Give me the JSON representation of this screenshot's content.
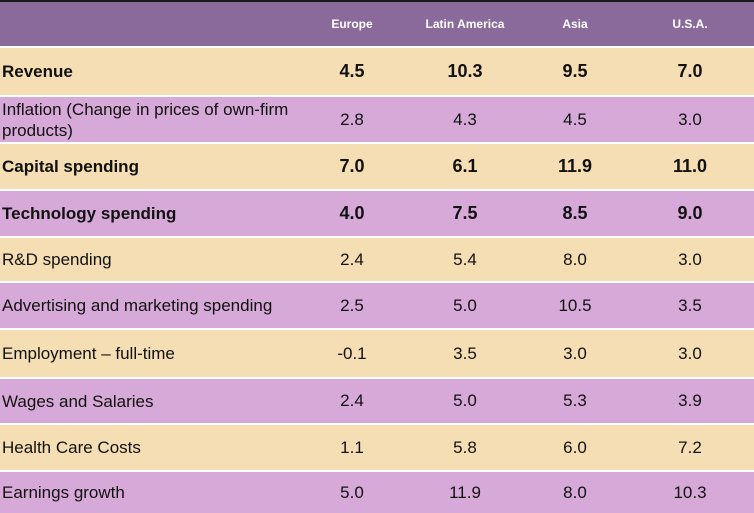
{
  "chart_data": {
    "type": "table",
    "columns": [
      "Europe",
      "Latin America",
      "Asia",
      "U.S.A."
    ],
    "rows": [
      {
        "label": "Revenue",
        "values": [
          "4.5",
          "10.3",
          "9.5",
          "7.0"
        ],
        "bold": true
      },
      {
        "label": "Inflation (Change in prices of own-firm products)",
        "values": [
          "2.8",
          "4.3",
          "4.5",
          "3.0"
        ],
        "bold": false
      },
      {
        "label": "Capital spending",
        "values": [
          "7.0",
          "6.1",
          "11.9",
          "11.0"
        ],
        "bold": true
      },
      {
        "label": "Technology spending",
        "values": [
          "4.0",
          "7.5",
          "8.5",
          "9.0"
        ],
        "bold": true
      },
      {
        "label": "R&D spending",
        "values": [
          "2.4",
          "5.4",
          "8.0",
          "3.0"
        ],
        "bold": false
      },
      {
        "label": "Advertising and marketing spending",
        "values": [
          "2.5",
          "5.0",
          "10.5",
          "3.5"
        ],
        "bold": false
      },
      {
        "label": "Employment – full-time",
        "values": [
          "-0.1",
          "3.5",
          "3.0",
          "3.0"
        ],
        "bold": false
      },
      {
        "label": "Wages and Salaries",
        "values": [
          "2.4",
          "5.0",
          "5.3",
          "3.9"
        ],
        "bold": false
      },
      {
        "label": "Health Care Costs",
        "values": [
          "1.1",
          "5.8",
          "6.0",
          "7.2"
        ],
        "bold": false
      },
      {
        "label": "Earnings growth",
        "values": [
          "5.0",
          "11.9",
          "8.0",
          "10.3"
        ],
        "bold": false
      }
    ]
  },
  "colors": {
    "header": "#8a6a9b",
    "row_tan": "#f5deb3",
    "row_lilac": "#d6a9d8"
  }
}
